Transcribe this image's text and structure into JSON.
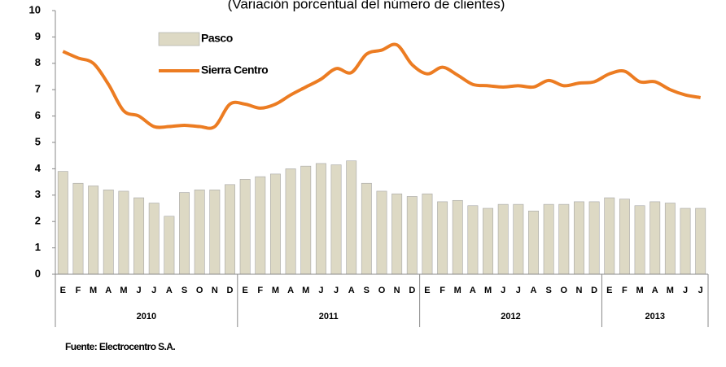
{
  "chart_data": {
    "type": "bar-line",
    "title": "(Variación porcentual del número de clientes)",
    "source": "Fuente: Electrocentro S.A.",
    "category_groups": [
      {
        "label": "2010",
        "categories": [
          "E",
          "F",
          "M",
          "A",
          "M",
          "J",
          "J",
          "A",
          "S",
          "O",
          "N",
          "D"
        ]
      },
      {
        "label": "2011",
        "categories": [
          "E",
          "F",
          "M",
          "A",
          "M",
          "J",
          "J",
          "A",
          "S",
          "O",
          "N",
          "D"
        ]
      },
      {
        "label": "2012",
        "categories": [
          "E",
          "F",
          "M",
          "A",
          "M",
          "J",
          "J",
          "A",
          "S",
          "O",
          "N",
          "D"
        ]
      },
      {
        "label": "2013",
        "categories": [
          "E",
          "F",
          "M",
          "A",
          "M",
          "J",
          "J"
        ]
      }
    ],
    "series": [
      {
        "name": "Pasco",
        "type": "bar",
        "color": "#ddd9c4",
        "values": [
          3.9,
          3.45,
          3.35,
          3.2,
          3.15,
          2.9,
          2.7,
          2.2,
          3.1,
          3.2,
          3.2,
          3.4,
          3.6,
          3.7,
          3.8,
          4.0,
          4.1,
          4.2,
          4.15,
          4.3,
          3.45,
          3.15,
          3.05,
          2.95,
          3.05,
          2.75,
          2.8,
          2.6,
          2.5,
          2.65,
          2.65,
          2.4,
          2.65,
          2.65,
          2.75,
          2.75,
          2.9,
          2.85,
          2.6,
          2.75,
          2.7,
          2.5,
          2.5
        ]
      },
      {
        "name": "Sierra Centro",
        "type": "line",
        "color": "#ec7c22",
        "values": [
          8.45,
          8.2,
          8.0,
          7.2,
          6.2,
          6.0,
          5.6,
          5.6,
          5.65,
          5.6,
          5.6,
          6.45,
          6.45,
          6.3,
          6.45,
          6.8,
          7.1,
          7.4,
          7.8,
          7.65,
          8.35,
          8.5,
          8.7,
          7.95,
          7.6,
          7.85,
          7.55,
          7.2,
          7.15,
          7.1,
          7.15,
          7.1,
          7.35,
          7.15,
          7.25,
          7.3,
          7.6,
          7.7,
          7.3,
          7.3,
          7.0,
          6.8,
          6.7
        ]
      }
    ],
    "ylim": [
      0,
      10
    ],
    "yticks": [
      0,
      1,
      2,
      3,
      4,
      5,
      6,
      7,
      8,
      9,
      10
    ]
  }
}
